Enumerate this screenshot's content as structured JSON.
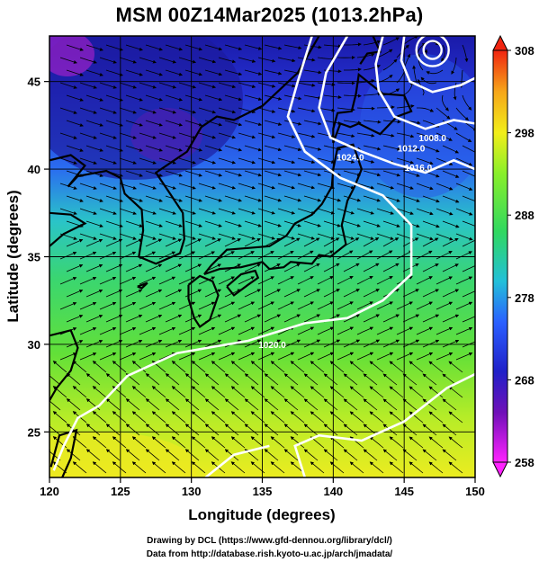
{
  "header": {
    "title": "MSM 00Z14Mar2025 (1013.2hPa)"
  },
  "axes": {
    "xlabel": "Longitude (degrees)",
    "ylabel": "Latitude  (degrees)",
    "xticks": [
      "120",
      "125",
      "130",
      "135",
      "140",
      "145",
      "150"
    ],
    "yticks": [
      "25",
      "30",
      "35",
      "40",
      "45"
    ],
    "xlim": [
      120,
      150
    ],
    "ylim": [
      22.4,
      47.6
    ]
  },
  "colorbar": {
    "ticks": [
      "258",
      "268",
      "278",
      "288",
      "298",
      "308"
    ],
    "range": [
      258,
      308
    ],
    "colors": [
      "#ff22ff",
      "#2010b8",
      "#2a55ff",
      "#22bcd8",
      "#3ce070",
      "#88ef2a",
      "#f2ee1a",
      "#f6a61a",
      "#f02410"
    ]
  },
  "contours": {
    "line_color": "#ffffff",
    "labels": [
      "1008.0",
      "1012.0",
      "1016.0",
      "1020.0",
      "1024.0"
    ]
  },
  "map": {
    "field": "temperature",
    "overlay": "streamlines",
    "coastline_color": "#000000",
    "gridline_color": "#000000"
  },
  "footer": {
    "credit_line1": "Drawing by DCL (https://www.gfd-dennou.org/library/dcl/)",
    "credit_line2": "Data from http://database.rish.kyoto-u.ac.jp/arch/jmadata/"
  }
}
